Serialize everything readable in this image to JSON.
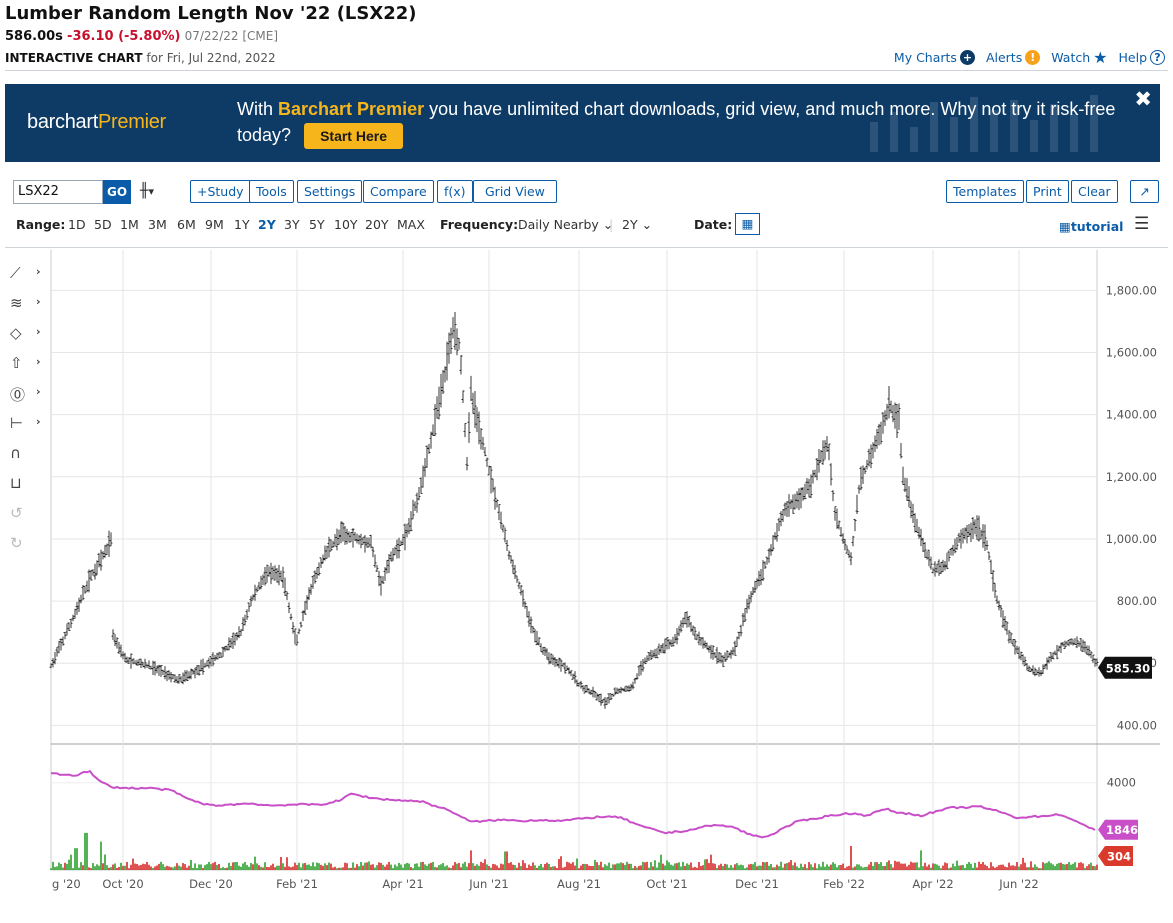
{
  "header": {
    "title": "Lumber Random Length Nov '22 (LSX22)",
    "last": "586.00s",
    "change": "-36.10 (-5.80%)",
    "meta": "07/22/22 [CME]",
    "chart_label": "INTERACTIVE CHART",
    "chart_for": "for Fri, Jul 22nd, 2022"
  },
  "top_links": {
    "my_charts": "My Charts",
    "alerts": "Alerts",
    "watch": "Watch",
    "help": "Help"
  },
  "banner": {
    "logo_a": "barchart",
    "logo_b": "Premier",
    "msg_pre": "With ",
    "msg_brand": "Barchart Premier",
    "msg_post": " you have unlimited chart downloads, grid view, and much more. Why not try it risk-free today?",
    "cta": "Start Here",
    "close": "✖"
  },
  "toolbar": {
    "symbol": "LSX22",
    "go": "GO",
    "study": "+Study",
    "tools": "Tools",
    "settings": "Settings",
    "compare": "Compare",
    "fx": "f(x)",
    "grid_view": "Grid View",
    "templates": "Templates",
    "print": "Print",
    "clear": "Clear"
  },
  "range_bar": {
    "range_label": "Range:",
    "ranges": [
      "1D",
      "5D",
      "1M",
      "3M",
      "6M",
      "9M",
      "1Y",
      "2Y",
      "3Y",
      "5Y",
      "10Y",
      "20Y",
      "MAX"
    ],
    "selected": "2Y",
    "frequency_label": "Frequency:",
    "frequency": "Daily Nearby",
    "period": "2Y",
    "date_label": "Date:",
    "tutorial": "tutorial"
  },
  "colors": {
    "accent": "#0a5ca8",
    "negative": "#c8102e",
    "banner_bg": "#0e3b66",
    "banner_highlight": "#f7b51c",
    "oi_line": "#c94fc9",
    "volume_up": "#2ca02c",
    "volume_down": "#d62728"
  },
  "chart_data": {
    "type": "ohlc",
    "symbol": "LSX22",
    "frequency": "daily",
    "price_axis": {
      "ylim": [
        340,
        1930
      ],
      "ticks": [
        400,
        600,
        800,
        1000,
        1200,
        1400,
        1600,
        1800
      ],
      "tick_labels": [
        "400.00",
        "600.00",
        "800.00",
        "1,000.00",
        "1,200.00",
        "1,400.00",
        "1,600.00",
        "1,800.00"
      ]
    },
    "last_price_label": "585.30",
    "x_tick_labels": [
      "g '20",
      "Oct '20",
      "Dec '20",
      "Feb '21",
      "Apr '21",
      "Jun '21",
      "Aug '21",
      "Oct '21",
      "Dec '21",
      "Feb '22",
      "Apr '22",
      "Jun '22"
    ],
    "price_path": [
      [
        0,
        590
      ],
      [
        20,
        730
      ],
      [
        40,
        880
      ],
      [
        55,
        960
      ],
      [
        60,
        1000
      ],
      [
        62,
        690
      ],
      [
        75,
        610
      ],
      [
        90,
        600
      ],
      [
        110,
        575
      ],
      [
        128,
        545
      ],
      [
        150,
        585
      ],
      [
        170,
        630
      ],
      [
        190,
        700
      ],
      [
        200,
        800
      ],
      [
        215,
        890
      ],
      [
        232,
        880
      ],
      [
        245,
        665
      ],
      [
        260,
        840
      ],
      [
        275,
        960
      ],
      [
        290,
        1015
      ],
      [
        305,
        1005
      ],
      [
        320,
        985
      ],
      [
        330,
        850
      ],
      [
        340,
        940
      ],
      [
        355,
        1010
      ],
      [
        368,
        1150
      ],
      [
        380,
        1320
      ],
      [
        395,
        1550
      ],
      [
        402,
        1690
      ],
      [
        409,
        1620
      ],
      [
        416,
        1250
      ],
      [
        420,
        1470
      ],
      [
        430,
        1330
      ],
      [
        445,
        1130
      ],
      [
        458,
        950
      ],
      [
        470,
        830
      ],
      [
        480,
        720
      ],
      [
        492,
        640
      ],
      [
        502,
        610
      ],
      [
        515,
        590
      ],
      [
        528,
        530
      ],
      [
        545,
        495
      ],
      [
        555,
        470
      ],
      [
        565,
        510
      ],
      [
        580,
        520
      ],
      [
        595,
        615
      ],
      [
        610,
        645
      ],
      [
        625,
        680
      ],
      [
        635,
        750
      ],
      [
        645,
        690
      ],
      [
        660,
        640
      ],
      [
        672,
        610
      ],
      [
        683,
        640
      ],
      [
        690,
        710
      ],
      [
        700,
        820
      ],
      [
        715,
        920
      ],
      [
        725,
        1020
      ],
      [
        735,
        1100
      ],
      [
        748,
        1130
      ],
      [
        760,
        1180
      ],
      [
        770,
        1260
      ],
      [
        777,
        1310
      ],
      [
        783,
        1100
      ],
      [
        793,
        990
      ],
      [
        800,
        940
      ],
      [
        808,
        1160
      ],
      [
        818,
        1260
      ],
      [
        830,
        1350
      ],
      [
        838,
        1430
      ],
      [
        848,
        1380
      ],
      [
        852,
        1200
      ],
      [
        860,
        1100
      ],
      [
        872,
        980
      ],
      [
        882,
        900
      ],
      [
        893,
        910
      ],
      [
        905,
        990
      ],
      [
        915,
        1020
      ],
      [
        925,
        1040
      ],
      [
        935,
        1000
      ],
      [
        945,
        810
      ],
      [
        957,
        700
      ],
      [
        968,
        630
      ],
      [
        978,
        580
      ],
      [
        990,
        570
      ],
      [
        1000,
        620
      ],
      [
        1012,
        660
      ],
      [
        1025,
        670
      ],
      [
        1035,
        650
      ],
      [
        1045,
        600
      ]
    ],
    "open_interest": {
      "ylim": [
        0,
        5500
      ],
      "tick": 4000,
      "last": "1846",
      "path": [
        [
          0,
          4400
        ],
        [
          25,
          4350
        ],
        [
          38,
          4550
        ],
        [
          46,
          4150
        ],
        [
          60,
          3800
        ],
        [
          80,
          3750
        ],
        [
          100,
          3750
        ],
        [
          120,
          3650
        ],
        [
          140,
          3200
        ],
        [
          160,
          2950
        ],
        [
          180,
          3000
        ],
        [
          200,
          3050
        ],
        [
          220,
          2950
        ],
        [
          240,
          3000
        ],
        [
          270,
          3000
        ],
        [
          290,
          3200
        ],
        [
          300,
          3500
        ],
        [
          320,
          3300
        ],
        [
          345,
          3200
        ],
        [
          370,
          3150
        ],
        [
          400,
          2700
        ],
        [
          420,
          2200
        ],
        [
          450,
          2300
        ],
        [
          470,
          2250
        ],
        [
          490,
          2300
        ],
        [
          510,
          2250
        ],
        [
          530,
          2350
        ],
        [
          550,
          2450
        ],
        [
          570,
          2400
        ],
        [
          590,
          2000
        ],
        [
          615,
          1700
        ],
        [
          635,
          1800
        ],
        [
          660,
          2050
        ],
        [
          680,
          2000
        ],
        [
          700,
          1600
        ],
        [
          715,
          1500
        ],
        [
          745,
          2200
        ],
        [
          780,
          2500
        ],
        [
          800,
          2600
        ],
        [
          815,
          2500
        ],
        [
          835,
          2800
        ],
        [
          845,
          2650
        ],
        [
          870,
          2500
        ],
        [
          900,
          2850
        ],
        [
          930,
          2900
        ],
        [
          950,
          2650
        ],
        [
          965,
          2400
        ],
        [
          985,
          2450
        ],
        [
          1010,
          2550
        ],
        [
          1030,
          2100
        ],
        [
          1045,
          1846
        ]
      ]
    },
    "volume": {
      "last": "304",
      "peaks": [
        [
          35,
          1700
        ],
        [
          50,
          1300
        ],
        [
          25,
          1000
        ],
        [
          420,
          900
        ],
        [
          455,
          850
        ],
        [
          800,
          1100
        ],
        [
          870,
          900
        ],
        [
          610,
          700
        ]
      ]
    }
  }
}
